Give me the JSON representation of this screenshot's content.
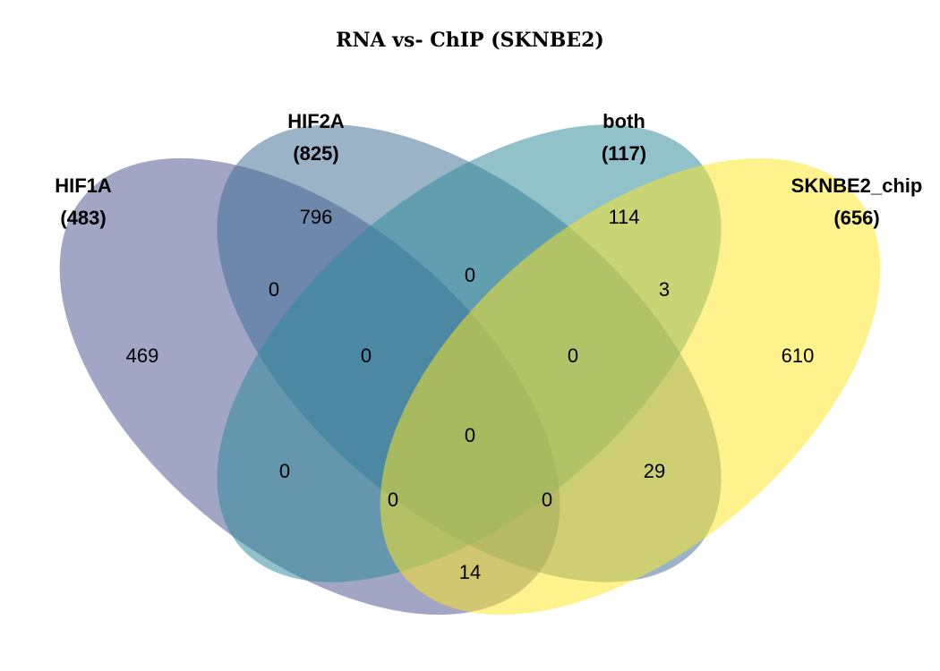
{
  "title": "RNA vs- ChIP (SKNBE2)",
  "sets": [
    {
      "id": "hif1a",
      "name": "HIF1A",
      "size_label": "(483)",
      "color": "#4a5590"
    },
    {
      "id": "hif2a",
      "name": "HIF2A",
      "size_label": "(825)",
      "color": "#3f6e94"
    },
    {
      "id": "both",
      "name": "both",
      "size_label": "(117)",
      "color": "#2d8a99"
    },
    {
      "id": "sknbe2",
      "name": "SKNBE2_chip",
      "size_label": "(656)",
      "color": "#fde725"
    }
  ],
  "regions": {
    "hif1a_only": "469",
    "hif2a_only": "796",
    "both_only": "114",
    "sknbe2_only": "610",
    "hif1a_hif2a": "0",
    "hif2a_both": "0",
    "both_sknbe2": "3",
    "hif1a_hif2a_both": "0",
    "hif2a_both_sknbe2": "0",
    "all_four": "0",
    "hif1a_both": "0",
    "hif2a_sknbe2": "29",
    "hif1a_both_sknbe2": "0",
    "hif1a_hif2a_sknbe2": "0",
    "hif1a_sknbe2": "14"
  }
}
